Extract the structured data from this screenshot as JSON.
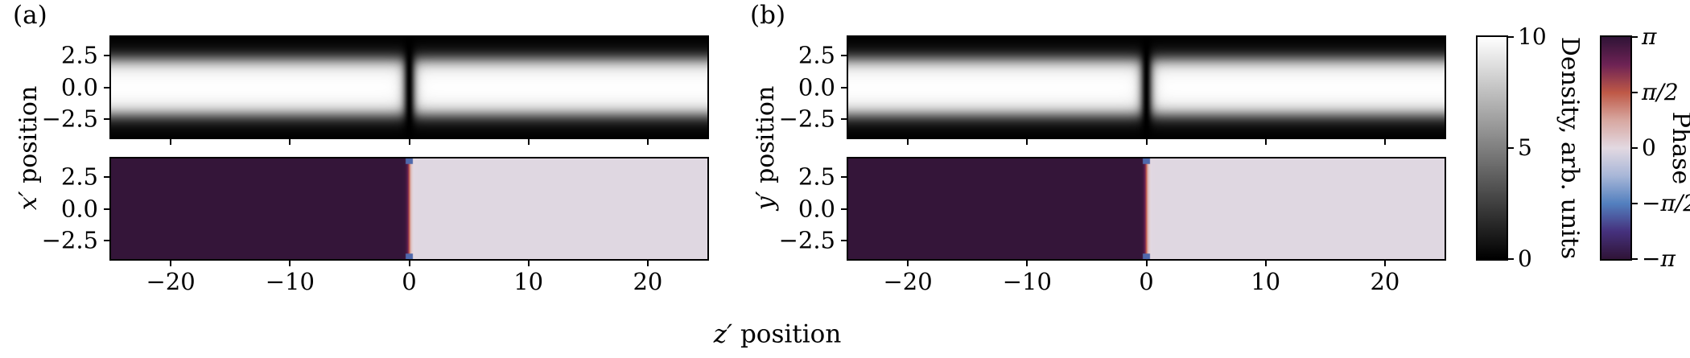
{
  "figure": {
    "background": "#ffffff",
    "xlabel": {
      "var": "z′",
      "rest": " position"
    }
  },
  "panels": [
    {
      "tag": "(a)",
      "ylabel": {
        "var": "x′",
        "rest": " position"
      },
      "yticks": [
        "2.5",
        "0.0",
        "−2.5"
      ],
      "xticks": [
        "−20",
        "−10",
        "0",
        "10",
        "20"
      ]
    },
    {
      "tag": "(b)",
      "ylabel": {
        "var": "y′",
        "rest": " position"
      },
      "yticks": [
        "2.5",
        "0.0",
        "−2.5"
      ],
      "xticks": [
        "−20",
        "−10",
        "0",
        "10",
        "20"
      ]
    }
  ],
  "colorbars": {
    "density": {
      "label": "Density, arb. units",
      "ticks": [
        "10",
        "5",
        "0"
      ],
      "vmin": 0,
      "vmax": 10,
      "colormap": "grayscale"
    },
    "phase": {
      "label": "Phase",
      "ticks": [
        "π",
        "π/2",
        "0",
        "−π/2",
        "−π"
      ],
      "vmin": -3.14159,
      "vmax": 3.14159,
      "colormap": "twilight_shifted"
    }
  },
  "chart_data": {
    "type": "heatmap",
    "title": "",
    "xlabel": "z′ position",
    "x_range": [
      -25,
      25
    ],
    "y_range": [
      -4,
      4
    ],
    "x_ticks": [
      -20,
      -10,
      0,
      10,
      20
    ],
    "y_ticks": [
      2.5,
      0.0,
      -2.5
    ],
    "grid": false,
    "description": "Two panels (a),(b); each has a grayscale density heatmap (bright condensate band along z with a dark soliton notch at z'=0) and a twilight-colormap phase heatmap (phase ≈ π for z'<0, ≈ 0 for z'>0, sharp jump through π/2 at z'=0 with small blue artifacts at the transverse edges).",
    "panels": [
      {
        "tag": "(a)",
        "ylabel": "x′ position",
        "density": {
          "peak": 10,
          "vmax": 10,
          "band_halfwidth": 2.2,
          "band_softness": 0.38,
          "soliton_center": 0,
          "soliton_width": 0.5,
          "colormap": "grayscale"
        },
        "phase": {
          "left_phase": 3.09,
          "right_phase": -0.05,
          "jump_center": 0,
          "jump_width": 0.2,
          "edge_x": 3.55,
          "edge_halfwidth_z": 0.32,
          "edge_phase": -1.8,
          "colormap": "twilight_shifted"
        }
      },
      {
        "tag": "(b)",
        "ylabel": "y′ position",
        "density": {
          "peak": 10,
          "vmax": 10,
          "band_halfwidth": 2.2,
          "band_softness": 0.38,
          "soliton_center": 0,
          "soliton_width": 0.5,
          "colormap": "grayscale"
        },
        "phase": {
          "left_phase": 3.09,
          "right_phase": -0.05,
          "jump_center": 0,
          "jump_width": 0.2,
          "edge_x": 3.55,
          "edge_halfwidth_z": 0.32,
          "edge_phase": -1.8,
          "colormap": "twilight_shifted"
        }
      }
    ],
    "colormaps": {
      "grayscale": [
        "#000000",
        "#ffffff"
      ],
      "twilight_shifted": [
        "#301437",
        "#46327e",
        "#5380bf",
        "#a8b7d8",
        "#e3d9e2",
        "#d8a8a1",
        "#bf5947",
        "#6e2355",
        "#301437"
      ]
    }
  }
}
